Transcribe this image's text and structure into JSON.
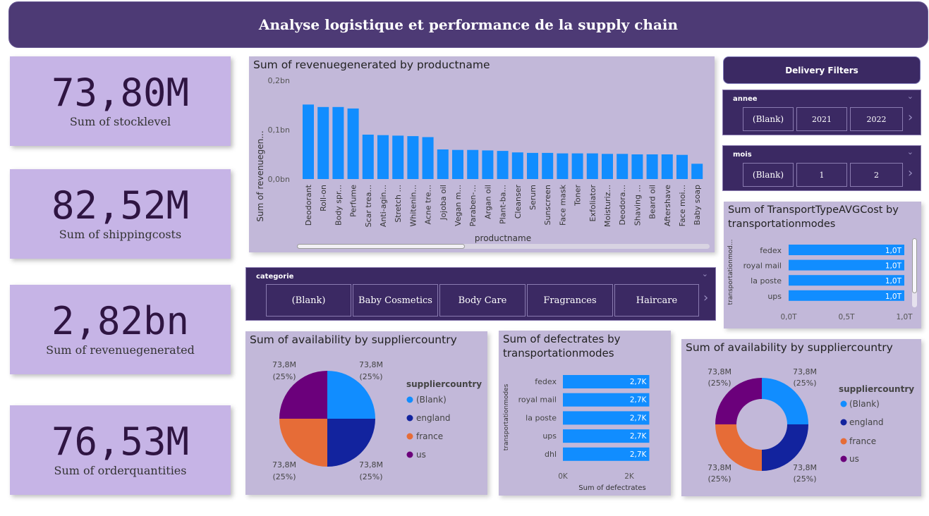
{
  "header": {
    "title": "Analyse logistique et performance de la supply chain"
  },
  "kpis": [
    {
      "value": "73,80M",
      "label": "Sum of stocklevel"
    },
    {
      "value": "82,52M",
      "label": "Sum of shippingcosts"
    },
    {
      "value": "2,82bn",
      "label": "Sum of revenuegenerated"
    },
    {
      "value": "76,53M",
      "label": "Sum of orderquantities"
    }
  ],
  "revenue_chart": {
    "title": "Sum of revenuegenerated by productname",
    "ylabel": "Sum of revenuegen...",
    "xlabel": "productname",
    "yticks": [
      "0,2bn",
      "0,1bn",
      "0,0bn"
    ],
    "bar_color": "#118dff"
  },
  "delivery_filters": {
    "label": "Delivery Filters"
  },
  "annee_slicer": {
    "title": "annee",
    "options": [
      "(Blank)",
      "2021",
      "2022"
    ]
  },
  "mois_slicer": {
    "title": "mois",
    "options": [
      "(Blank)",
      "1",
      "2"
    ]
  },
  "categorie_slicer": {
    "title": "categorie",
    "options": [
      "(Blank)",
      "Baby Cosmetics",
      "Body Care",
      "Fragrances",
      "Haircare"
    ]
  },
  "transport_cost": {
    "title_line1": "Sum of TransportTypeAVGCost by",
    "title_line2": "transportationmodes",
    "ylabel": "transportationmod...",
    "categories": [
      "fedex",
      "royal mail",
      "la poste",
      "ups"
    ],
    "labels": [
      "1,0T",
      "1,0T",
      "1,0T",
      "1,0T"
    ],
    "xticks": [
      "0,0T",
      "0,5T",
      "1,0T"
    ]
  },
  "availability_pie": {
    "title": "Sum of availability by suppliercountry",
    "legend_title": "suppliercountry",
    "slice_labels": [
      "73,8M",
      "(25%)"
    ]
  },
  "defect_rates": {
    "title_line1": "Sum of defectrates by",
    "title_line2": "transportationmodes",
    "ylabel": "transportationmodes",
    "xlabel": "Sum of defectrates",
    "categories": [
      "fedex",
      "royal mail",
      "la poste",
      "ups",
      "dhl"
    ],
    "labels": [
      "2,7K",
      "2,7K",
      "2,7K",
      "2,7K",
      "2,7K"
    ],
    "xticks": [
      "0K",
      "2K"
    ]
  },
  "availability_donut": {
    "title": "Sum of availability by suppliercountry",
    "legend_title": "suppliercountry"
  },
  "legend_items": [
    "(Blank)",
    "england",
    "france",
    "us"
  ],
  "colors": {
    "blank": "#118dff",
    "england": "#12239e",
    "france": "#e66c37",
    "us": "#6b007b",
    "kpi_bg": "#c6b4e6",
    "panel_bg": "#c2b8d9",
    "slicer_bg": "#3b2963"
  },
  "chart_data": [
    {
      "type": "bar",
      "title": "Sum of revenuegenerated by productname",
      "xlabel": "productname",
      "ylabel": "Sum of revenuegen...",
      "ylim": [
        0,
        0.2
      ],
      "unit": "bn",
      "categories": [
        "Deodorant",
        "Roll-on",
        "Body spr...",
        "Perfume",
        "Scar trea...",
        "Anti-agin...",
        "Stretch ...",
        "Whitenin...",
        "Acne tre...",
        "Jojoba oil",
        "Vegan m...",
        "Paraben-...",
        "Argan oil",
        "Plant-ba...",
        "Cleanser",
        "Serum",
        "Sunscreen",
        "Face mask",
        "Toner",
        "Exfoliator",
        "Moisturiz...",
        "Deodora...",
        "Shaving ...",
        "Beard oil",
        "Aftershave",
        "Face moi...",
        "Baby soap"
      ],
      "values": [
        0.151,
        0.146,
        0.146,
        0.143,
        0.09,
        0.089,
        0.088,
        0.087,
        0.085,
        0.06,
        0.059,
        0.059,
        0.058,
        0.057,
        0.054,
        0.053,
        0.053,
        0.052,
        0.052,
        0.052,
        0.051,
        0.051,
        0.05,
        0.05,
        0.05,
        0.049,
        0.031
      ]
    },
    {
      "type": "bar",
      "orientation": "horizontal",
      "title": "Sum of TransportTypeAVGCost by transportationmodes",
      "categories": [
        "fedex",
        "royal mail",
        "la poste",
        "ups"
      ],
      "values": [
        1.0,
        1.0,
        1.0,
        1.0
      ],
      "unit": "T",
      "xlim": [
        0,
        1.0
      ]
    },
    {
      "type": "pie",
      "title": "Sum of availability by suppliercountry",
      "categories": [
        "(Blank)",
        "england",
        "france",
        "us"
      ],
      "values": [
        73.8,
        73.8,
        73.8,
        73.8
      ],
      "percents": [
        25,
        25,
        25,
        25
      ],
      "unit": "M"
    },
    {
      "type": "bar",
      "orientation": "horizontal",
      "title": "Sum of defectrates by transportationmodes",
      "xlabel": "Sum of defectrates",
      "ylabel": "transportationmodes",
      "categories": [
        "fedex",
        "royal mail",
        "la poste",
        "ups",
        "dhl"
      ],
      "values": [
        2.7,
        2.7,
        2.7,
        2.7,
        2.7
      ],
      "unit": "K",
      "xlim": [
        0,
        2.8
      ]
    },
    {
      "type": "pie",
      "variant": "donut",
      "title": "Sum of availability by suppliercountry",
      "categories": [
        "(Blank)",
        "england",
        "france",
        "us"
      ],
      "values": [
        73.8,
        73.8,
        73.8,
        73.8
      ],
      "percents": [
        25,
        25,
        25,
        25
      ],
      "unit": "M"
    }
  ]
}
